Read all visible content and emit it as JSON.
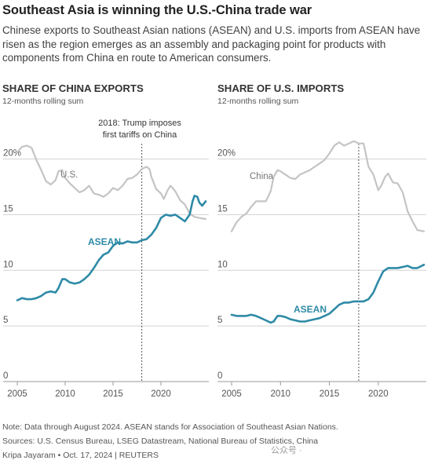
{
  "title": "Southeast Asia is winning the U.S.-China trade war",
  "subtitle": "Chinese exports to Southeast Asian nations (ASEAN) and U.S. imports from ASEAN have risen as the region emerges as an assembly and packaging point for products with components from China en route to American consumers.",
  "footer": {
    "note": "Note: Data through August 2024. ASEAN stands for Association of Southeast Asian Nations.",
    "sources": "Sources: U.S. Census Bureau, LSEG Datastream, National Bureau of Statistics, China",
    "credit": "Kripa Jayaram • Oct. 17, 2024 | REUTERS",
    "watermark": "公众号 ·"
  },
  "colors": {
    "asean": "#2e8aa6",
    "other": "#c4c4c4",
    "grid": "#d2d2d2",
    "text": "#555555"
  },
  "chart_data": [
    {
      "type": "line",
      "title": "SHARE OF CHINA EXPORTS",
      "subtitle": "12-months rolling sum",
      "xlim": [
        2005,
        2024.67
      ],
      "ylim": [
        0,
        21.5
      ],
      "x_ticks": [
        2005,
        2010,
        2015,
        2020
      ],
      "y_ticks": [
        0,
        5,
        10,
        15,
        20
      ],
      "y_tick_labels": [
        "0",
        "5",
        "10",
        "15",
        "20%"
      ],
      "annotation": {
        "x": 2018,
        "lines": [
          "2018: Trump imposes",
          "first tariffs on China"
        ]
      },
      "series": [
        {
          "name": "U.S.",
          "color": "#c4c4c4",
          "points": [
            [
              2005,
              20.6
            ],
            [
              2005.5,
              21.1
            ],
            [
              2006,
              21.2
            ],
            [
              2006.5,
              21.0
            ],
            [
              2007,
              19.9
            ],
            [
              2007.5,
              19.0
            ],
            [
              2008,
              18.0
            ],
            [
              2008.5,
              17.7
            ],
            [
              2009,
              18.1
            ],
            [
              2009.3,
              18.9
            ],
            [
              2009.7,
              19.0
            ],
            [
              2010,
              18.3
            ],
            [
              2010.5,
              17.8
            ],
            [
              2011,
              17.4
            ],
            [
              2011.5,
              17.0
            ],
            [
              2012,
              17.2
            ],
            [
              2012.5,
              17.6
            ],
            [
              2013,
              16.9
            ],
            [
              2013.5,
              16.8
            ],
            [
              2014,
              16.6
            ],
            [
              2014.5,
              16.9
            ],
            [
              2015,
              17.4
            ],
            [
              2015.5,
              17.2
            ],
            [
              2016,
              17.6
            ],
            [
              2016.5,
              18.2
            ],
            [
              2017,
              18.3
            ],
            [
              2017.5,
              18.6
            ],
            [
              2018,
              19.1
            ],
            [
              2018.5,
              19.3
            ],
            [
              2018.8,
              19.1
            ],
            [
              2019,
              18.4
            ],
            [
              2019.5,
              17.3
            ],
            [
              2020,
              16.9
            ],
            [
              2020.3,
              16.4
            ],
            [
              2020.7,
              17.2
            ],
            [
              2021,
              17.6
            ],
            [
              2021.5,
              17.1
            ],
            [
              2022,
              16.3
            ],
            [
              2022.5,
              15.9
            ],
            [
              2023,
              15.1
            ],
            [
              2023.5,
              14.8
            ],
            [
              2024,
              14.7
            ],
            [
              2024.67,
              14.6
            ]
          ]
        },
        {
          "name": "ASEAN",
          "color": "#2e8aa6",
          "points": [
            [
              2005,
              7.3
            ],
            [
              2005.5,
              7.5
            ],
            [
              2006,
              7.4
            ],
            [
              2006.5,
              7.4
            ],
            [
              2007,
              7.5
            ],
            [
              2007.5,
              7.7
            ],
            [
              2008,
              8.0
            ],
            [
              2008.5,
              8.1
            ],
            [
              2009,
              8.0
            ],
            [
              2009.3,
              8.4
            ],
            [
              2009.7,
              9.2
            ],
            [
              2010,
              9.2
            ],
            [
              2010.5,
              8.9
            ],
            [
              2011,
              8.8
            ],
            [
              2011.5,
              8.9
            ],
            [
              2012,
              9.2
            ],
            [
              2012.5,
              9.6
            ],
            [
              2013,
              10.2
            ],
            [
              2013.5,
              10.9
            ],
            [
              2014,
              11.4
            ],
            [
              2014.5,
              11.6
            ],
            [
              2015,
              12.2
            ],
            [
              2015.5,
              12.5
            ],
            [
              2016,
              12.4
            ],
            [
              2016.5,
              12.6
            ],
            [
              2017,
              12.5
            ],
            [
              2017.5,
              12.5
            ],
            [
              2018,
              12.7
            ],
            [
              2018.5,
              12.8
            ],
            [
              2019,
              13.2
            ],
            [
              2019.5,
              13.8
            ],
            [
              2020,
              14.7
            ],
            [
              2020.5,
              15.0
            ],
            [
              2021,
              14.9
            ],
            [
              2021.5,
              15.0
            ],
            [
              2022,
              14.7
            ],
            [
              2022.5,
              14.4
            ],
            [
              2023,
              15.0
            ],
            [
              2023.3,
              16.2
            ],
            [
              2023.5,
              16.7
            ],
            [
              2023.8,
              16.6
            ],
            [
              2024,
              16.1
            ],
            [
              2024.3,
              15.8
            ],
            [
              2024.67,
              16.2
            ]
          ]
        }
      ]
    },
    {
      "type": "line",
      "title": "SHARE OF U.S. IMPORTS",
      "subtitle": "12-months rolling sum",
      "xlim": [
        2005,
        2024.67
      ],
      "ylim": [
        0,
        21.5
      ],
      "x_ticks": [
        2005,
        2010,
        2015,
        2020
      ],
      "y_ticks": [
        0,
        5,
        10,
        15,
        20
      ],
      "y_tick_labels": [
        "0",
        "5",
        "10",
        "15",
        "20%"
      ],
      "annotation": {
        "x": 2018
      },
      "series": [
        {
          "name": "China",
          "color": "#c4c4c4",
          "points": [
            [
              2005,
              13.5
            ],
            [
              2005.5,
              14.3
            ],
            [
              2006,
              14.8
            ],
            [
              2006.5,
              15.1
            ],
            [
              2007,
              15.7
            ],
            [
              2007.5,
              16.2
            ],
            [
              2008,
              16.2
            ],
            [
              2008.5,
              16.2
            ],
            [
              2009,
              17.1
            ],
            [
              2009.3,
              18.4
            ],
            [
              2009.7,
              19.0
            ],
            [
              2010,
              18.9
            ],
            [
              2010.5,
              18.6
            ],
            [
              2011,
              18.3
            ],
            [
              2011.5,
              18.2
            ],
            [
              2012,
              18.6
            ],
            [
              2012.5,
              18.8
            ],
            [
              2013,
              19.0
            ],
            [
              2013.5,
              19.3
            ],
            [
              2014,
              19.6
            ],
            [
              2014.5,
              19.9
            ],
            [
              2015,
              20.5
            ],
            [
              2015.5,
              21.2
            ],
            [
              2016,
              21.5
            ],
            [
              2016.5,
              21.2
            ],
            [
              2017,
              21.4
            ],
            [
              2017.5,
              21.6
            ],
            [
              2018,
              21.4
            ],
            [
              2018.5,
              21.4
            ],
            [
              2019,
              19.3
            ],
            [
              2019.5,
              18.6
            ],
            [
              2020,
              17.2
            ],
            [
              2020.3,
              17.6
            ],
            [
              2020.7,
              18.4
            ],
            [
              2021,
              18.7
            ],
            [
              2021.5,
              17.9
            ],
            [
              2022,
              17.8
            ],
            [
              2022.5,
              17.0
            ],
            [
              2023,
              15.3
            ],
            [
              2023.5,
              14.4
            ],
            [
              2024,
              13.6
            ],
            [
              2024.67,
              13.5
            ]
          ]
        },
        {
          "name": "ASEAN",
          "color": "#2e8aa6",
          "points": [
            [
              2005,
              6.0
            ],
            [
              2005.5,
              5.9
            ],
            [
              2006,
              5.9
            ],
            [
              2006.5,
              5.9
            ],
            [
              2007,
              6.0
            ],
            [
              2007.5,
              5.9
            ],
            [
              2008,
              5.7
            ],
            [
              2008.5,
              5.5
            ],
            [
              2009,
              5.3
            ],
            [
              2009.3,
              5.4
            ],
            [
              2009.7,
              5.9
            ],
            [
              2010,
              5.9
            ],
            [
              2010.5,
              5.8
            ],
            [
              2011,
              5.6
            ],
            [
              2011.5,
              5.5
            ],
            [
              2012,
              5.4
            ],
            [
              2012.5,
              5.4
            ],
            [
              2013,
              5.5
            ],
            [
              2013.5,
              5.6
            ],
            [
              2014,
              5.7
            ],
            [
              2014.5,
              5.9
            ],
            [
              2015,
              6.1
            ],
            [
              2015.5,
              6.5
            ],
            [
              2016,
              6.9
            ],
            [
              2016.5,
              7.1
            ],
            [
              2017,
              7.1
            ],
            [
              2017.5,
              7.2
            ],
            [
              2018,
              7.2
            ],
            [
              2018.5,
              7.2
            ],
            [
              2019,
              7.4
            ],
            [
              2019.5,
              8.0
            ],
            [
              2020,
              9.0
            ],
            [
              2020.5,
              9.9
            ],
            [
              2021,
              10.2
            ],
            [
              2021.5,
              10.2
            ],
            [
              2022,
              10.2
            ],
            [
              2022.5,
              10.3
            ],
            [
              2023,
              10.4
            ],
            [
              2023.5,
              10.2
            ],
            [
              2024,
              10.2
            ],
            [
              2024.67,
              10.5
            ]
          ]
        }
      ]
    }
  ]
}
